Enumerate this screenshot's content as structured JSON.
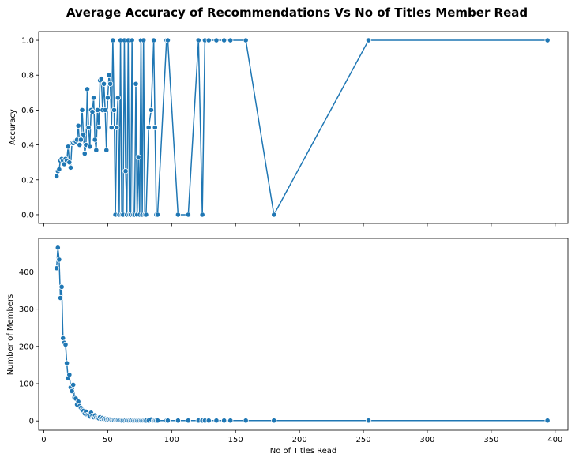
{
  "figure": {
    "title": "Average Accuracy of Recommendations Vs No of Titles Member Read"
  },
  "colors": {
    "series": "#1f77b4",
    "marker_edge": "#ffffff"
  },
  "chart_data": [
    {
      "type": "line",
      "panel": "top",
      "title": "Average Accuracy of Recommendations Vs No of Titles Member Read",
      "xlabel": "",
      "ylabel": "Accuracy",
      "xlim": [
        -4,
        410
      ],
      "ylim": [
        -0.05,
        1.05
      ],
      "xticks": [
        0,
        50,
        100,
        150,
        200,
        250,
        300,
        350,
        400
      ],
      "xtick_labels_visible": false,
      "yticks": [
        0.0,
        0.2,
        0.4,
        0.6,
        0.8,
        1.0
      ],
      "ytick_labels": [
        "0.0",
        "0.2",
        "0.4",
        "0.6",
        "0.8",
        "1.0"
      ],
      "grid": false,
      "marker": "circle",
      "series": [
        {
          "x": [
            10,
            11,
            12,
            13,
            14,
            15,
            16,
            17,
            18,
            19,
            20,
            21,
            22,
            23,
            24,
            25,
            26,
            27,
            28,
            29,
            30,
            31,
            32,
            33,
            34,
            35,
            36,
            37,
            38,
            39,
            40,
            41,
            42,
            43,
            44,
            45,
            46,
            47,
            48,
            49,
            50,
            51,
            52,
            53,
            54,
            55,
            56,
            57,
            58,
            59,
            60,
            61,
            62,
            63,
            64,
            65,
            66,
            67,
            68,
            69,
            70,
            71,
            72,
            73,
            74,
            75,
            76,
            77,
            78,
            79,
            80,
            82,
            84,
            86,
            87,
            88,
            89,
            96,
            97,
            105,
            113,
            121,
            124,
            126,
            129,
            135,
            141,
            146,
            158,
            180,
            254,
            394
          ],
          "y": [
            0.22,
            0.25,
            0.26,
            0.31,
            0.32,
            0.31,
            0.29,
            0.32,
            0.31,
            0.39,
            0.3,
            0.27,
            0.41,
            0.41,
            0.42,
            0.42,
            0.43,
            0.51,
            0.4,
            0.43,
            0.6,
            0.46,
            0.35,
            0.4,
            0.72,
            0.5,
            0.39,
            0.6,
            0.59,
            0.67,
            0.43,
            0.37,
            0.6,
            0.5,
            0.77,
            0.78,
            0.6,
            0.75,
            0.6,
            0.37,
            0.67,
            0.8,
            0.75,
            0.5,
            1.0,
            0.6,
            0.0,
            0.5,
            0.67,
            0.0,
            1.0,
            0.0,
            0.0,
            1.0,
            0.25,
            0.0,
            1.0,
            0.0,
            0.0,
            1.0,
            0.0,
            0.0,
            0.75,
            0.0,
            0.33,
            0.0,
            1.0,
            0.0,
            1.0,
            0.0,
            0.0,
            0.5,
            0.6,
            1.0,
            0.5,
            0.0,
            0.0,
            1.0,
            1.0,
            0.0,
            0.0,
            1.0,
            0.0,
            1.0,
            1.0,
            1.0,
            1.0,
            1.0,
            1.0,
            0.0,
            1.0,
            1.0
          ]
        }
      ]
    },
    {
      "type": "line",
      "panel": "bottom",
      "title": "",
      "xlabel": "No of Titles Read",
      "ylabel": "Number of Members",
      "xlim": [
        -4,
        410
      ],
      "ylim": [
        -25,
        490
      ],
      "xticks": [
        0,
        50,
        100,
        150,
        200,
        250,
        300,
        350,
        400
      ],
      "xtick_labels": [
        "0",
        "50",
        "100",
        "150",
        "200",
        "250",
        "300",
        "350",
        "400"
      ],
      "yticks": [
        0,
        100,
        200,
        300,
        400
      ],
      "ytick_labels": [
        "0",
        "100",
        "200",
        "300",
        "400"
      ],
      "grid": false,
      "marker": "circle",
      "series": [
        {
          "x": [
            10,
            11,
            12,
            13,
            14,
            15,
            16,
            17,
            18,
            19,
            20,
            21,
            22,
            23,
            24,
            25,
            26,
            27,
            28,
            29,
            30,
            31,
            32,
            33,
            34,
            35,
            36,
            37,
            38,
            39,
            40,
            41,
            42,
            43,
            44,
            45,
            46,
            47,
            48,
            49,
            50,
            51,
            52,
            53,
            54,
            55,
            56,
            57,
            58,
            59,
            60,
            61,
            62,
            63,
            64,
            65,
            66,
            67,
            68,
            69,
            70,
            71,
            72,
            73,
            74,
            75,
            76,
            77,
            78,
            79,
            80,
            82,
            84,
            86,
            87,
            88,
            89,
            96,
            97,
            105,
            113,
            121,
            124,
            126,
            129,
            135,
            141,
            146,
            158,
            180,
            254,
            394
          ],
          "y": [
            410,
            465,
            433,
            330,
            360,
            222,
            210,
            205,
            155,
            115,
            124,
            90,
            80,
            97,
            63,
            60,
            44,
            52,
            40,
            35,
            30,
            27,
            20,
            25,
            16,
            15,
            12,
            22,
            14,
            10,
            15,
            9,
            8,
            7,
            10,
            6,
            8,
            5,
            6,
            4,
            5,
            3,
            4,
            3,
            3,
            2,
            3,
            2,
            2,
            2,
            2,
            1,
            2,
            1,
            2,
            1,
            1,
            1,
            1,
            2,
            1,
            1,
            1,
            1,
            1,
            1,
            1,
            1,
            1,
            1,
            1,
            1,
            4,
            1,
            1,
            1,
            1,
            1,
            1,
            1,
            1,
            1,
            1,
            1,
            1,
            1,
            1,
            1,
            1,
            1,
            1,
            1
          ]
        }
      ]
    }
  ]
}
